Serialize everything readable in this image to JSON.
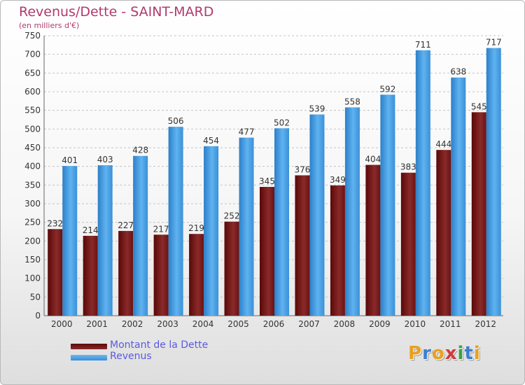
{
  "chart_data": {
    "type": "bar",
    "title": "Revenus/Dette - SAINT-MARD",
    "subtitle": "(en milliers d'€)",
    "categories": [
      "2000",
      "2001",
      "2002",
      "2003",
      "2004",
      "2005",
      "2006",
      "2007",
      "2008",
      "2009",
      "2010",
      "2011",
      "2012"
    ],
    "series": [
      {
        "name": "Montant de la Dette",
        "color": "#7a1a1a",
        "values": [
          232,
          214,
          227,
          217,
          219,
          252,
          345,
          376,
          349,
          404,
          383,
          444,
          545
        ]
      },
      {
        "name": "Revenus",
        "color": "#4aa3e8",
        "values": [
          401,
          403,
          428,
          506,
          454,
          477,
          502,
          539,
          558,
          592,
          711,
          638,
          717
        ]
      }
    ],
    "ylim": [
      0,
      750
    ],
    "yticks": [
      0,
      50,
      100,
      150,
      200,
      250,
      300,
      350,
      400,
      450,
      500,
      550,
      600,
      650,
      700,
      750
    ],
    "grid": true,
    "legend_position": "bottom-left"
  },
  "logo": {
    "letters": [
      "P",
      "r",
      "o",
      "x",
      "i",
      "t",
      "i"
    ],
    "colors": [
      "#e8a020",
      "#3a7fd0",
      "#e8a020",
      "#d03a3a",
      "#3aa040",
      "#3a7fd0",
      "#e8a020"
    ]
  }
}
